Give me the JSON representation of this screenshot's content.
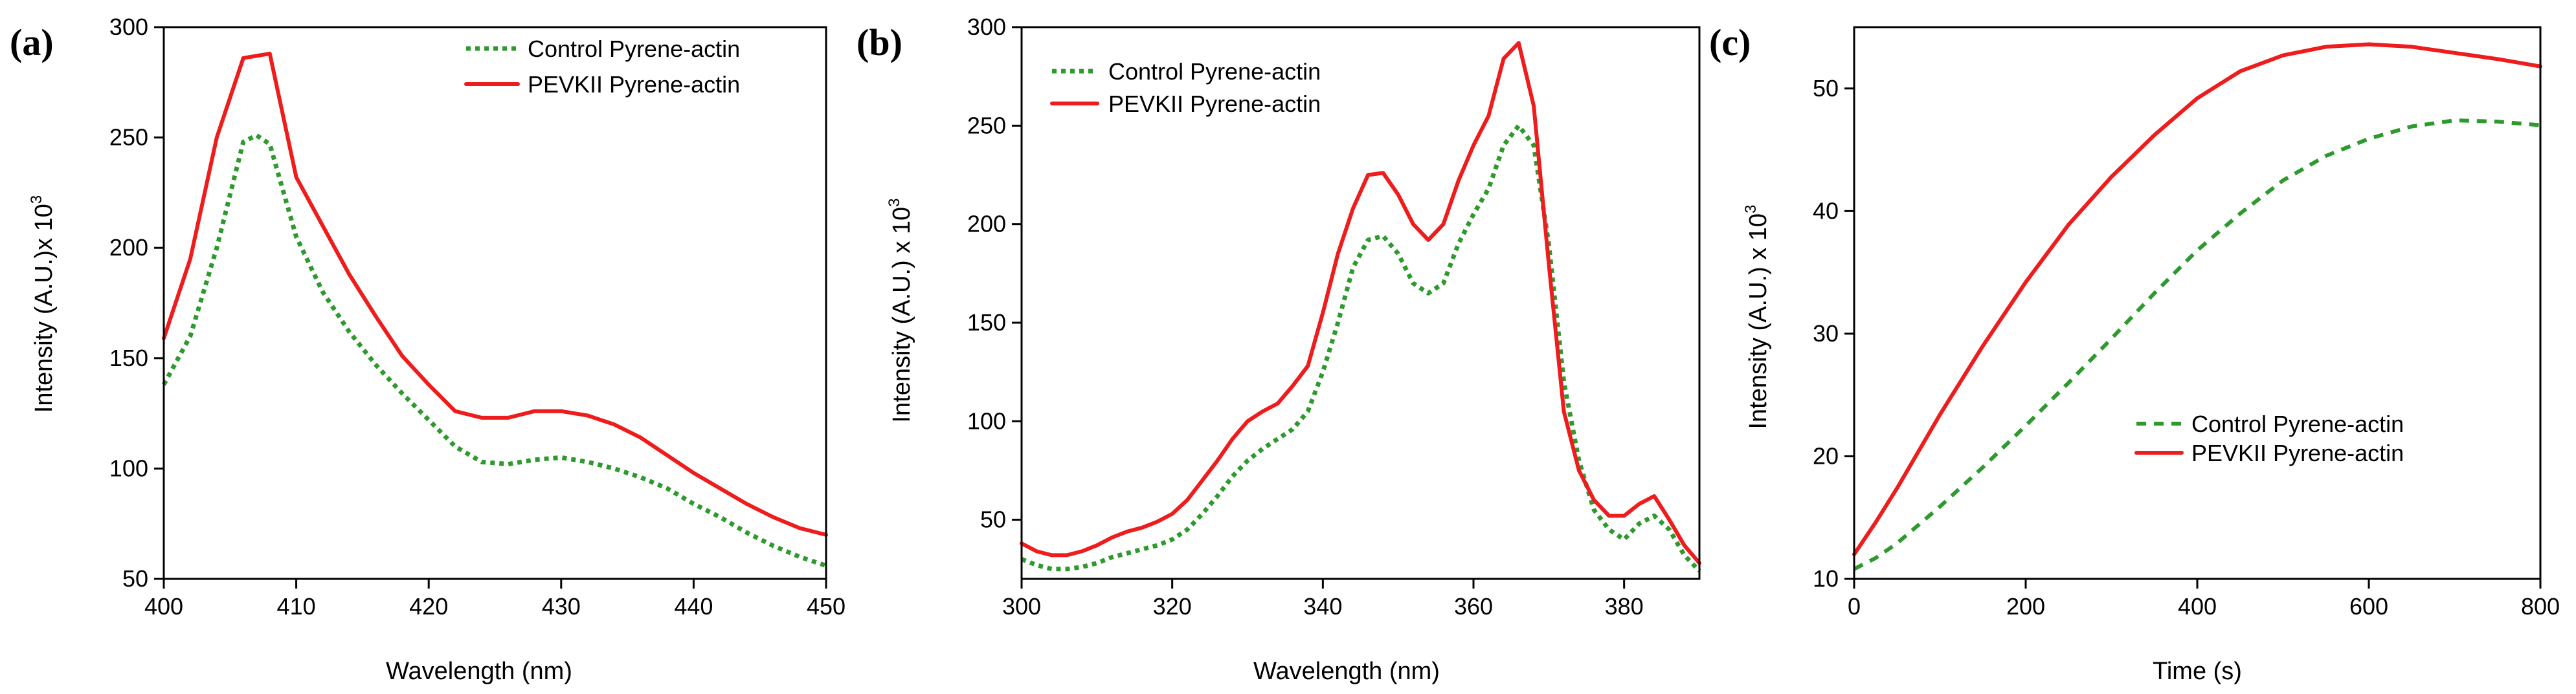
{
  "colors": {
    "control": "#2e9a2e",
    "pevkii": "#ee1c1c"
  },
  "chart_data": [
    {
      "panel_label": "(a)",
      "type": "line",
      "xlabel": "Wavelength (nm)",
      "ylabel_main": "Intensity (A.U.)x 10",
      "ylabel_sup": "3",
      "xlim": [
        400,
        450
      ],
      "ylim": [
        50,
        300
      ],
      "xticks": [
        400,
        410,
        420,
        430,
        440,
        450
      ],
      "yticks": [
        50,
        100,
        150,
        200,
        250,
        300
      ],
      "legend_position": "top-right",
      "series": [
        {
          "name": "Control Pyrene-actin",
          "style": "dotted",
          "color_key": "control",
          "x": [
            400,
            402,
            404,
            406,
            407,
            408,
            410,
            412,
            414,
            416,
            418,
            420,
            422,
            424,
            426,
            428,
            430,
            432,
            434,
            436,
            438,
            440,
            442,
            444,
            446,
            448,
            450
          ],
          "y": [
            138,
            160,
            200,
            248,
            251,
            247,
            205,
            180,
            162,
            147,
            134,
            122,
            110,
            103,
            102,
            104,
            105,
            103,
            100,
            96,
            91,
            84,
            78,
            71,
            65,
            60,
            56
          ]
        },
        {
          "name": "PEVKII Pyrene-actin",
          "style": "solid",
          "color_key": "pevkii",
          "x": [
            400,
            402,
            404,
            406,
            408,
            410,
            412,
            414,
            416,
            418,
            420,
            422,
            424,
            426,
            428,
            430,
            432,
            434,
            436,
            438,
            440,
            442,
            444,
            446,
            448,
            450
          ],
          "y": [
            159,
            195,
            250,
            286,
            288,
            232,
            210,
            188,
            169,
            151,
            138,
            126,
            123,
            123,
            126,
            126,
            124,
            120,
            114,
            106,
            98,
            91,
            84,
            78,
            73,
            70
          ]
        }
      ]
    },
    {
      "panel_label": "(b)",
      "type": "line",
      "xlabel": "Wavelength (nm)",
      "ylabel_main": "Intensity (A.U.) x 10",
      "ylabel_sup": "3",
      "xlim": [
        300,
        390
      ],
      "ylim": [
        20,
        300
      ],
      "xticks": [
        300,
        320,
        340,
        360,
        380
      ],
      "yticks": [
        50,
        100,
        150,
        200,
        250,
        300
      ],
      "legend_position": "top-left",
      "series": [
        {
          "name": "Control Pyrene-actin",
          "style": "dotted",
          "color_key": "control",
          "x": [
            300,
            302,
            304,
            306,
            308,
            310,
            312,
            314,
            316,
            318,
            320,
            322,
            324,
            326,
            328,
            330,
            332,
            334,
            336,
            338,
            340,
            342,
            344,
            346,
            348,
            350,
            352,
            354,
            356,
            358,
            360,
            362,
            364,
            366,
            368,
            370,
            372,
            374,
            376,
            378,
            380,
            382,
            384,
            386,
            388,
            390
          ],
          "y": [
            30,
            27,
            25,
            25,
            26,
            28,
            31,
            33,
            35,
            37,
            40,
            45,
            53,
            62,
            72,
            80,
            86,
            91,
            96,
            105,
            125,
            150,
            178,
            192,
            194,
            185,
            170,
            165,
            170,
            190,
            205,
            218,
            240,
            250,
            240,
            190,
            120,
            80,
            55,
            45,
            40,
            48,
            52,
            45,
            32,
            24
          ]
        },
        {
          "name": "PEVKII Pyrene-actin",
          "style": "solid",
          "color_key": "pevkii",
          "x": [
            300,
            302,
            304,
            306,
            308,
            310,
            312,
            314,
            316,
            318,
            320,
            322,
            324,
            326,
            328,
            330,
            332,
            334,
            336,
            338,
            340,
            342,
            344,
            346,
            348,
            350,
            352,
            354,
            356,
            358,
            360,
            362,
            364,
            366,
            368,
            370,
            372,
            374,
            376,
            378,
            380,
            382,
            384,
            386,
            388,
            390
          ],
          "y": [
            38,
            34,
            32,
            32,
            34,
            37,
            41,
            44,
            46,
            49,
            53,
            60,
            70,
            80,
            91,
            100,
            105,
            109,
            118,
            128,
            155,
            185,
            208,
            225,
            226,
            215,
            200,
            192,
            200,
            222,
            240,
            255,
            284,
            292,
            260,
            180,
            105,
            75,
            60,
            52,
            52,
            58,
            62,
            50,
            37,
            28
          ]
        }
      ]
    },
    {
      "panel_label": "(c)",
      "type": "line",
      "xlabel": "Time (s)",
      "ylabel_main": "Intensity (A.U.) x 10",
      "ylabel_sup": "3",
      "xlim": [
        0,
        800
      ],
      "ylim": [
        10,
        55
      ],
      "xticks": [
        0,
        200,
        400,
        600,
        800
      ],
      "yticks": [
        10,
        20,
        30,
        40,
        50
      ],
      "legend_position": "bottom-right",
      "series": [
        {
          "name": "Control Pyrene-actin",
          "style": "dashed",
          "color_key": "control",
          "x": [
            0,
            25,
            50,
            100,
            150,
            200,
            250,
            300,
            350,
            400,
            450,
            500,
            550,
            600,
            650,
            700,
            750,
            800
          ],
          "y": [
            10.8,
            11.7,
            12.9,
            15.9,
            19.1,
            22.5,
            26.0,
            29.6,
            33.3,
            36.8,
            39.8,
            42.5,
            44.5,
            45.9,
            46.9,
            47.4,
            47.3,
            47.0
          ]
        },
        {
          "name": "PEVKII Pyrene-actin",
          "style": "solid",
          "color_key": "pevkii",
          "x": [
            0,
            25,
            50,
            100,
            150,
            200,
            250,
            300,
            350,
            400,
            450,
            500,
            550,
            600,
            650,
            700,
            750,
            800
          ],
          "y": [
            12.0,
            14.6,
            17.4,
            23.4,
            29.0,
            34.2,
            38.9,
            42.8,
            46.2,
            49.2,
            51.4,
            52.7,
            53.4,
            53.6,
            53.4,
            52.9,
            52.4,
            51.8
          ]
        }
      ]
    }
  ]
}
